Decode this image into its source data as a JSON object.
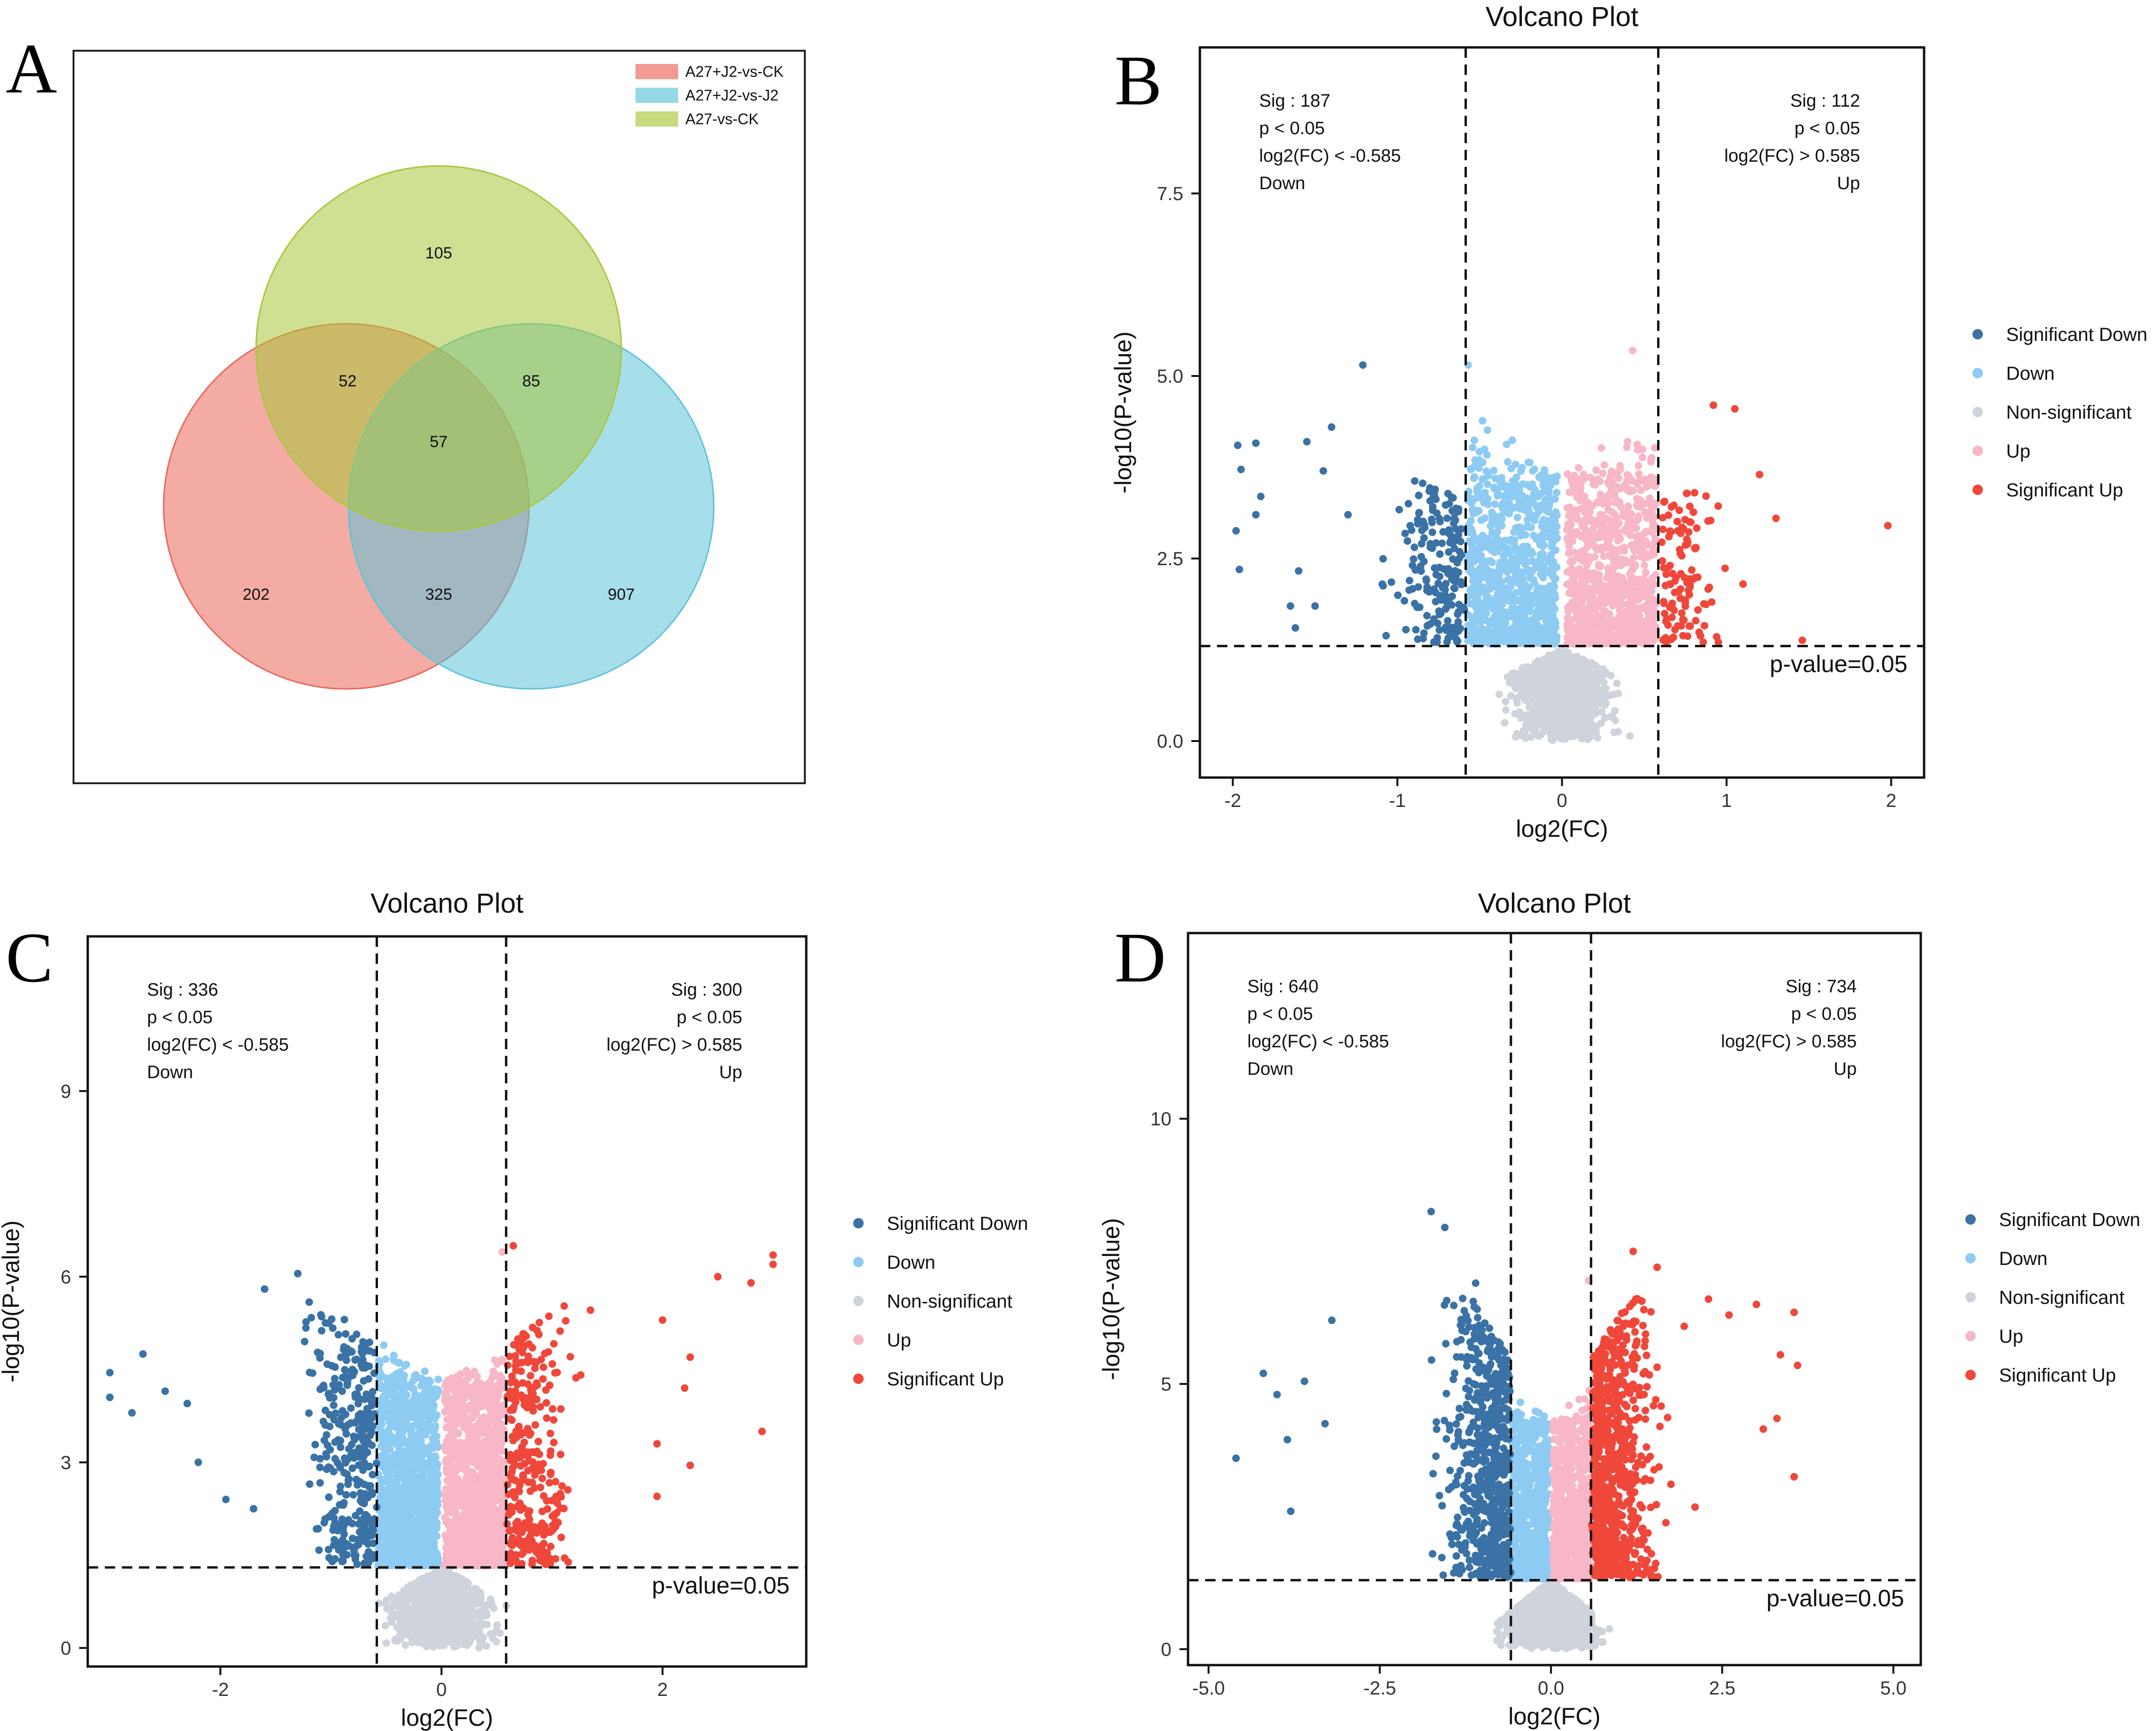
{
  "colors": {
    "sig_down": "#3a72a6",
    "down": "#8dcbf3",
    "ns": "#cfd4dc",
    "up": "#f7b7c6",
    "sig_up": "#f0473b",
    "venn_a": "#e9665a",
    "venn_b": "#5cc3d9",
    "venn_c": "#a8c63a"
  },
  "panels": {
    "A": {
      "letter": "A"
    },
    "B": {
      "letter": "B"
    },
    "C": {
      "letter": "C"
    },
    "D": {
      "letter": "D"
    }
  },
  "chart_data": [
    {
      "type": "venn",
      "panel": "A",
      "legend": [
        "A27+J2-vs-CK",
        "A27+J2-vs-J2",
        "A27-vs-CK"
      ],
      "sets": [
        "A27+J2-vs-CK",
        "A27+J2-vs-J2",
        "A27-vs-CK"
      ],
      "regions": {
        "only_A27J2_vs_CK": "202",
        "only_A27J2_vs_J2": "907",
        "only_A27_vs_CK": "105",
        "A27J2_vs_CK_and_A27_vs_CK": "52",
        "A27J2_vs_J2_and_A27_vs_CK": "85",
        "A27J2_vs_CK_and_A27J2_vs_J2": "325",
        "all_three": "57"
      }
    },
    {
      "type": "scatter",
      "panel": "B",
      "title": "Volcano Plot",
      "xlabel": "log2(FC)",
      "ylabel": "-log10(P-value)",
      "xlim": [
        -2.2,
        2.2
      ],
      "ylim": [
        -0.5,
        9.5
      ],
      "xticks": [
        -2,
        -1,
        0,
        1,
        2
      ],
      "xtick_labels": [
        "-2",
        "-1",
        "0",
        "1",
        "2"
      ],
      "yticks": [
        0,
        2.5,
        5,
        7.5
      ],
      "ytick_labels": [
        "0.0",
        "2.5",
        "5.0",
        "7.5"
      ],
      "fc_threshold": 0.585,
      "p_threshold": 1.301,
      "threshold_label": "p-value=0.05",
      "annot_down": [
        "Sig : 187",
        "p < 0.05",
        "log2(FC) < -0.585",
        "Down"
      ],
      "annot_up": [
        "Sig : 112",
        "p < 0.05",
        "log2(FC) > 0.585",
        "Up"
      ],
      "legend": [
        "Significant Down",
        "Down",
        "Non-significant",
        "Up",
        "Significant Up"
      ],
      "gen": {
        "seed": 11,
        "nDown": 900,
        "nUp": 900,
        "nNs": 1000,
        "nSigDown": 187,
        "nSigUp": 112,
        "ymaxBulk": 3.6,
        "ySpikeDown": 4.8,
        "ySpikeUp": 4.7,
        "sigSpread": 0.55,
        "sigYMax": 3.8,
        "nsMax": 1.25
      },
      "outliers": [
        [
          -1.21,
          5.15
        ],
        [
          -1.97,
          4.05
        ],
        [
          -1.86,
          4.08
        ],
        [
          -1.95,
          3.72
        ],
        [
          -1.83,
          3.35
        ],
        [
          -1.86,
          3.1
        ],
        [
          -1.98,
          2.88
        ],
        [
          -1.96,
          2.35
        ],
        [
          -1.6,
          2.33
        ],
        [
          -1.65,
          1.85
        ],
        [
          -1.62,
          1.55
        ],
        [
          -1.5,
          1.85
        ],
        [
          -1.45,
          3.7
        ],
        [
          -1.3,
          3.1
        ],
        [
          -1.4,
          4.3
        ],
        [
          -1.55,
          4.1
        ],
        [
          1.98,
          2.95
        ],
        [
          1.46,
          1.38
        ],
        [
          1.3,
          3.05
        ],
        [
          1.2,
          3.65
        ],
        [
          1.1,
          2.15
        ],
        [
          1.05,
          4.55
        ],
        [
          0.92,
          4.6
        ],
        [
          0.43,
          5.35
        ],
        [
          -0.57,
          5.15
        ]
      ]
    },
    {
      "type": "scatter",
      "panel": "C",
      "title": "Volcano Plot",
      "xlabel": "log2(FC)",
      "ylabel": "-log10(P-value)",
      "xlim": [
        -3.2,
        3.3
      ],
      "ylim": [
        -0.3,
        11.5
      ],
      "xticks": [
        -2,
        0,
        2
      ],
      "xtick_labels": [
        "-2",
        "0",
        "2"
      ],
      "yticks": [
        0,
        3,
        6,
        9
      ],
      "ytick_labels": [
        "0",
        "3",
        "6",
        "9"
      ],
      "fc_threshold": 0.585,
      "p_threshold": 1.301,
      "threshold_label": "p-value=0.05",
      "annot_down": [
        "Sig : 336",
        "p < 0.05",
        "log2(FC) < -0.585",
        "Down"
      ],
      "annot_up": [
        "Sig : 300",
        "p < 0.05",
        "log2(FC) > 0.585",
        "Up"
      ],
      "legend": [
        "Significant Down",
        "Down",
        "Non-significant",
        "Up",
        "Significant Up"
      ],
      "gen": {
        "seed": 23,
        "nDown": 1200,
        "nUp": 1200,
        "nNs": 1100,
        "nSigDown": 336,
        "nSigUp": 300,
        "ymaxBulk": 4.3,
        "ySpikeDown": 5.3,
        "ySpikeUp": 5.0,
        "sigSpread": 0.85,
        "sigYMax": 5.8,
        "nsMax": 1.3
      },
      "outliers": [
        [
          -3.0,
          4.45
        ],
        [
          -3.0,
          4.05
        ],
        [
          -2.8,
          3.8
        ],
        [
          -2.7,
          4.75
        ],
        [
          -2.5,
          4.15
        ],
        [
          -2.3,
          3.95
        ],
        [
          -2.2,
          3.0
        ],
        [
          -1.95,
          2.4
        ],
        [
          -1.7,
          2.25
        ],
        [
          -1.3,
          6.05
        ],
        [
          -1.6,
          5.8
        ],
        [
          2.5,
          6.0
        ],
        [
          2.8,
          5.9
        ],
        [
          3.0,
          6.35
        ],
        [
          3.0,
          6.2
        ],
        [
          2.9,
          3.5
        ],
        [
          2.25,
          4.7
        ],
        [
          2.2,
          4.2
        ],
        [
          2.0,
          5.3
        ],
        [
          2.25,
          2.95
        ],
        [
          1.95,
          2.45
        ],
        [
          1.95,
          3.3
        ],
        [
          0.65,
          6.5
        ],
        [
          0.55,
          6.4
        ]
      ]
    },
    {
      "type": "scatter",
      "panel": "D",
      "title": "Volcano Plot",
      "xlabel": "log2(FC)",
      "ylabel": "-log10(P-value)",
      "xlim": [
        -5.3,
        5.4
      ],
      "ylim": [
        -0.3,
        13.5
      ],
      "xticks": [
        -5,
        -2.5,
        0,
        2.5,
        5
      ],
      "xtick_labels": [
        "-5.0",
        "-2.5",
        "0.0",
        "2.5",
        "5.0"
      ],
      "yticks": [
        0,
        5,
        10
      ],
      "ytick_labels": [
        "0",
        "5",
        "10"
      ],
      "fc_threshold": 0.585,
      "p_threshold": 1.301,
      "threshold_label": "p-value=0.05",
      "annot_down": [
        "Sig : 640",
        "p < 0.05",
        "log2(FC) < -0.585",
        "Down"
      ],
      "annot_up": [
        "Sig : 734",
        "p < 0.05",
        "log2(FC) > 0.585",
        "Up"
      ],
      "legend": [
        "Significant Down",
        "Down",
        "Non-significant",
        "Up",
        "Significant Up"
      ],
      "gen": {
        "seed": 37,
        "nDown": 700,
        "nUp": 700,
        "nNs": 900,
        "nSigDown": 640,
        "nSigUp": 734,
        "ymaxBulk": 4.3,
        "ySpikeDown": 5.1,
        "ySpikeUp": 5.2,
        "sigSpread": 1.25,
        "sigYMax": 6.6,
        "nsMax": 1.3
      },
      "outliers": [
        [
          -1.75,
          8.25
        ],
        [
          -1.55,
          7.95
        ],
        [
          -3.2,
          6.2
        ],
        [
          -4.6,
          3.6
        ],
        [
          -4.2,
          5.2
        ],
        [
          -4.0,
          4.8
        ],
        [
          -3.85,
          3.95
        ],
        [
          -3.6,
          5.05
        ],
        [
          -3.3,
          4.25
        ],
        [
          -3.8,
          2.6
        ],
        [
          3.55,
          6.35
        ],
        [
          3.6,
          5.35
        ],
        [
          3.55,
          3.25
        ],
        [
          3.35,
          5.55
        ],
        [
          3.3,
          4.35
        ],
        [
          3.1,
          4.15
        ],
        [
          3.0,
          6.5
        ],
        [
          2.3,
          6.6
        ],
        [
          2.6,
          6.3
        ],
        [
          1.2,
          7.5
        ],
        [
          1.55,
          7.2
        ],
        [
          -1.1,
          6.9
        ],
        [
          0.55,
          6.95
        ]
      ]
    }
  ]
}
